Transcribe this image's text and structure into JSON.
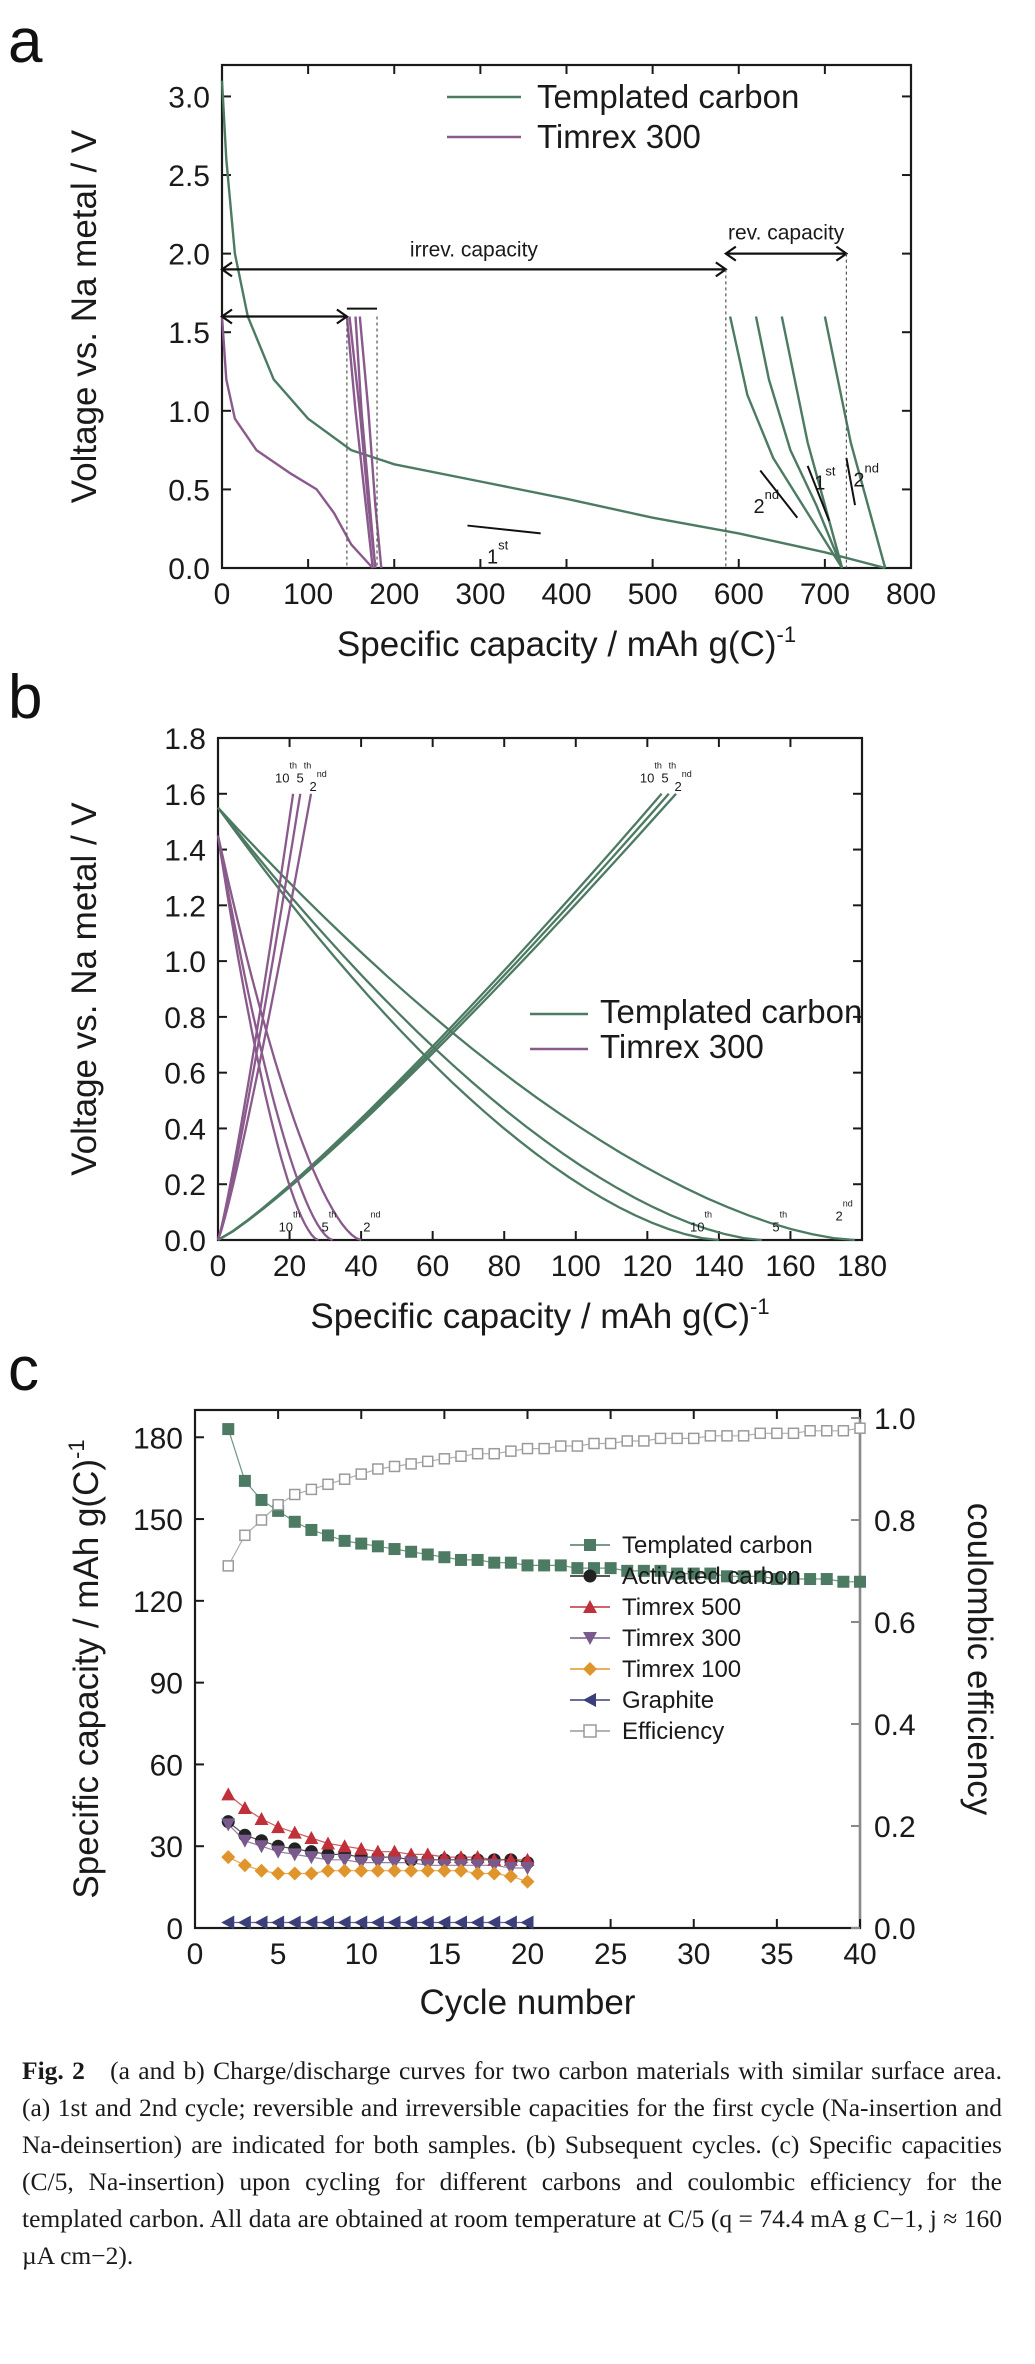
{
  "panels": {
    "a": {
      "letter": "a",
      "ylabel": "Voltage vs. Na metal / V",
      "xlabel": "Specific capacity / mAh g(C)",
      "xlabel_sup": "-1",
      "legend": [
        "Templated carbon",
        "Timrex 300"
      ],
      "annotations": {
        "irrev": "irrev. capacity",
        "rev": "rev. capacity",
        "first": "1",
        "first_sup": "st",
        "second": "2",
        "second_sup": "nd"
      }
    },
    "b": {
      "letter": "b",
      "ylabel": "Voltage vs. Na metal / V",
      "xlabel": "Specific capacity / mAh g(C)",
      "xlabel_sup": "-1",
      "legend": [
        "Templated carbon",
        "Timrex 300"
      ],
      "cycle_labels": {
        "tenth": "10",
        "tenth_sup": "th",
        "fifth": "5",
        "fifth_sup": "th",
        "second": "2",
        "second_sup": "nd"
      }
    },
    "c": {
      "letter": "c",
      "ylabel": "Specific capacity / mAh g(C)",
      "ylabel_sup": "-1",
      "y2label": "coulombic efficiency",
      "xlabel": "Cycle number",
      "legend": [
        "Templated carbon",
        "Activated carbon",
        "Timrex 500",
        "Timrex 300",
        "Timrex 100",
        "Graphite",
        "Efficiency"
      ]
    }
  },
  "colors": {
    "templated": "#4d7a62",
    "timrex300": "#8a5a8c",
    "activated": "#222222",
    "timrex500": "#c0303a",
    "timrex300c": "#7a5a8c",
    "timrex100": "#e0952c",
    "graphite": "#3a3f7a",
    "efficiency": "#9a9a9a",
    "axis": "#1a1a1a"
  },
  "caption": {
    "fig": "Fig. 2",
    "text": "(a and b) Charge/discharge curves for two carbon materials with similar surface area. (a) 1st and 2nd cycle; reversible and irreversible capacities for the first cycle (Na-insertion and Na-deinsertion) are indicated for both samples. (b) Subsequent cycles. (c) Specific capacities (C/5, Na-insertion) upon cycling for different carbons and coulombic efficiency for the templated carbon. All data are obtained at room temperature at C/5 (q = 74.4 mA g C−1, j ≈ 160 µA cm−2)."
  },
  "chart_data": [
    {
      "panel": "a",
      "type": "line",
      "xlabel": "Specific capacity / mAh g(C)-1",
      "ylabel": "Voltage vs. Na metal / V",
      "xlim": [
        0,
        800
      ],
      "ylim": [
        0,
        3.2
      ],
      "xticks": [
        0,
        100,
        200,
        300,
        400,
        500,
        600,
        700,
        800
      ],
      "yticks": [
        0.0,
        0.5,
        1.0,
        1.5,
        2.0,
        2.5,
        3.0
      ],
      "series": [
        {
          "name": "Templated carbon",
          "color": "#4d7a62",
          "curves": [
            [
              [
                0,
                3.1
              ],
              [
                5,
                2.6
              ],
              [
                15,
                2.0
              ],
              [
                30,
                1.6
              ],
              [
                60,
                1.2
              ],
              [
                100,
                0.95
              ],
              [
                150,
                0.75
              ],
              [
                200,
                0.66
              ],
              [
                300,
                0.55
              ],
              [
                400,
                0.44
              ],
              [
                500,
                0.32
              ],
              [
                600,
                0.22
              ],
              [
                700,
                0.1
              ],
              [
                770,
                0.0
              ]
            ],
            [
              [
                770,
                0.0
              ],
              [
                750,
                0.4
              ],
              [
                730,
                0.8
              ],
              [
                715,
                1.2
              ],
              [
                700,
                1.6
              ]
            ],
            [
              [
                590,
                1.6
              ],
              [
                610,
                1.1
              ],
              [
                640,
                0.7
              ],
              [
                680,
                0.35
              ],
              [
                720,
                0.0
              ]
            ],
            [
              [
                720,
                0.0
              ],
              [
                700,
                0.4
              ],
              [
                680,
                0.8
              ],
              [
                665,
                1.2
              ],
              [
                650,
                1.6
              ]
            ],
            [
              [
                620,
                1.6
              ],
              [
                635,
                1.2
              ],
              [
                660,
                0.75
              ],
              [
                690,
                0.4
              ],
              [
                720,
                0.0
              ]
            ]
          ]
        },
        {
          "name": "Timrex 300",
          "color": "#8a5a8c",
          "curves": [
            [
              [
                0,
                1.6
              ],
              [
                5,
                1.2
              ],
              [
                15,
                0.95
              ],
              [
                40,
                0.75
              ],
              [
                80,
                0.6
              ],
              [
                110,
                0.5
              ],
              [
                130,
                0.35
              ],
              [
                150,
                0.15
              ],
              [
                175,
                0.0
              ]
            ],
            [
              [
                175,
                0.0
              ],
              [
                165,
                0.5
              ],
              [
                155,
                1.0
              ],
              [
                145,
                1.6
              ]
            ],
            [
              [
                148,
                1.6
              ],
              [
                160,
                1.0
              ],
              [
                170,
                0.4
              ],
              [
                178,
                0.0
              ]
            ],
            [
              [
                178,
                0.0
              ],
              [
                170,
                0.5
              ],
              [
                162,
                1.0
              ],
              [
                155,
                1.6
              ]
            ],
            [
              [
                160,
                1.6
              ],
              [
                170,
                1.0
              ],
              [
                178,
                0.4
              ],
              [
                185,
                0.0
              ]
            ]
          ]
        }
      ],
      "annotations": [
        {
          "text": "irrev. capacity",
          "from": 0,
          "to": 585,
          "y": 1.9
        },
        {
          "text": "rev. capacity",
          "from": 585,
          "to": 725,
          "y": 1.9
        },
        {
          "text": "1st",
          "x": 330,
          "y": 0.25
        },
        {
          "text": "1st",
          "x": 690,
          "y": 0.8
        },
        {
          "text": "2nd",
          "x": 625,
          "y": 0.5
        },
        {
          "text": "2nd",
          "x": 745,
          "y": 0.9
        }
      ]
    },
    {
      "panel": "b",
      "type": "line",
      "xlabel": "Specific capacity / mAh g(C)-1",
      "ylabel": "Voltage vs. Na metal / V",
      "xlim": [
        0,
        180
      ],
      "ylim": [
        0,
        1.8
      ],
      "xticks": [
        0,
        20,
        40,
        60,
        80,
        100,
        120,
        140,
        160,
        180
      ],
      "yticks": [
        0.0,
        0.2,
        0.4,
        0.6,
        0.8,
        1.0,
        1.2,
        1.4,
        1.6,
        1.8
      ],
      "series": [
        {
          "name": "Templated carbon",
          "color": "#4d7a62",
          "discharge_end": [
            {
              "cycle": "2nd",
              "x": 178
            },
            {
              "cycle": "5th",
              "x": 152
            },
            {
              "cycle": "10th",
              "x": 140
            }
          ],
          "charge_end": [
            {
              "cycle": "2nd",
              "x": 128
            },
            {
              "cycle": "5th",
              "x": 126
            },
            {
              "cycle": "10th",
              "x": 124
            }
          ]
        },
        {
          "name": "Timrex 300",
          "color": "#8a5a8c",
          "discharge_end": [
            {
              "cycle": "2nd",
              "x": 40
            },
            {
              "cycle": "5th",
              "x": 32
            },
            {
              "cycle": "10th",
              "x": 28
            }
          ],
          "charge_end": [
            {
              "cycle": "2nd",
              "x": 26
            },
            {
              "cycle": "5th",
              "x": 23
            },
            {
              "cycle": "10th",
              "x": 21
            }
          ]
        }
      ]
    },
    {
      "panel": "c",
      "type": "scatter",
      "xlabel": "Cycle number",
      "ylabel": "Specific capacity / mAh g(C)-1",
      "y2label": "coulombic efficiency",
      "xlim": [
        0,
        40
      ],
      "ylim": [
        0,
        190
      ],
      "y2lim": [
        0,
        1.0
      ],
      "xticks": [
        0,
        5,
        10,
        15,
        20,
        25,
        30,
        35,
        40
      ],
      "yticks": [
        0,
        30,
        60,
        90,
        120,
        150,
        180
      ],
      "y2ticks": [
        0.0,
        0.2,
        0.4,
        0.6,
        0.8,
        1.0
      ],
      "series": [
        {
          "name": "Templated carbon",
          "marker": "square",
          "color": "#4d7a62",
          "x": [
            2,
            3,
            4,
            5,
            6,
            7,
            8,
            9,
            10,
            11,
            12,
            13,
            14,
            15,
            16,
            17,
            18,
            19,
            20,
            21,
            22,
            23,
            24,
            25,
            26,
            27,
            28,
            29,
            30,
            31,
            32,
            33,
            34,
            35,
            36,
            37,
            38,
            39,
            40
          ],
          "values": [
            183,
            164,
            157,
            153,
            149,
            146,
            144,
            142,
            141,
            140,
            139,
            138,
            137,
            136,
            135,
            135,
            134,
            134,
            133,
            133,
            133,
            132,
            132,
            132,
            131,
            131,
            131,
            130,
            130,
            130,
            129,
            129,
            129,
            128,
            128,
            128,
            128,
            127,
            127
          ]
        },
        {
          "name": "Activated carbon",
          "marker": "circle",
          "color": "#222222",
          "x": [
            2,
            3,
            4,
            5,
            6,
            7,
            8,
            9,
            10,
            11,
            12,
            13,
            14,
            15,
            16,
            17,
            18,
            19,
            20
          ],
          "values": [
            39,
            34,
            32,
            30,
            29,
            28,
            27,
            27,
            26,
            26,
            26,
            25,
            25,
            25,
            25,
            25,
            25,
            25,
            24
          ]
        },
        {
          "name": "Timrex 500",
          "marker": "triangle-up",
          "color": "#c0303a",
          "x": [
            2,
            3,
            4,
            5,
            6,
            7,
            8,
            9,
            10,
            11,
            12,
            13,
            14,
            15,
            16,
            17,
            18,
            19,
            20
          ],
          "values": [
            49,
            44,
            40,
            37,
            35,
            33,
            31,
            30,
            29,
            28,
            28,
            27,
            27,
            26,
            26,
            26,
            25,
            25,
            25
          ]
        },
        {
          "name": "Timrex 300",
          "marker": "triangle-down",
          "color": "#7a5a8c",
          "x": [
            2,
            3,
            4,
            5,
            6,
            7,
            8,
            9,
            10,
            11,
            12,
            13,
            14,
            15,
            16,
            17,
            18,
            19,
            20
          ],
          "values": [
            38,
            32,
            30,
            28,
            27,
            26,
            25,
            25,
            24,
            24,
            24,
            24,
            23,
            23,
            23,
            23,
            23,
            22,
            22
          ]
        },
        {
          "name": "Timrex 100",
          "marker": "diamond",
          "color": "#e0952c",
          "x": [
            2,
            3,
            4,
            5,
            6,
            7,
            8,
            9,
            10,
            11,
            12,
            13,
            14,
            15,
            16,
            17,
            18,
            19,
            20
          ],
          "values": [
            26,
            23,
            21,
            20,
            20,
            20,
            21,
            21,
            21,
            21,
            21,
            21,
            21,
            21,
            21,
            20,
            20,
            19,
            17
          ]
        },
        {
          "name": "Graphite",
          "marker": "triangle-left",
          "color": "#3a3f7a",
          "x": [
            2,
            3,
            4,
            5,
            6,
            7,
            8,
            9,
            10,
            11,
            12,
            13,
            14,
            15,
            16,
            17,
            18,
            19,
            20
          ],
          "values": [
            2,
            2,
            2,
            2,
            2,
            2,
            2,
            2,
            2,
            2,
            2,
            2,
            2,
            2,
            2,
            2,
            2,
            2,
            2
          ]
        },
        {
          "name": "Efficiency",
          "marker": "open-square",
          "color": "#9a9a9a",
          "axis": "right",
          "x": [
            2,
            3,
            4,
            5,
            6,
            7,
            8,
            9,
            10,
            11,
            12,
            13,
            14,
            15,
            16,
            17,
            18,
            19,
            20,
            21,
            22,
            23,
            24,
            25,
            26,
            27,
            28,
            29,
            30,
            31,
            32,
            33,
            34,
            35,
            36,
            37,
            38,
            39,
            40
          ],
          "values": [
            0.71,
            0.77,
            0.8,
            0.83,
            0.85,
            0.86,
            0.87,
            0.88,
            0.89,
            0.9,
            0.905,
            0.91,
            0.915,
            0.92,
            0.925,
            0.93,
            0.93,
            0.935,
            0.94,
            0.94,
            0.945,
            0.945,
            0.95,
            0.95,
            0.955,
            0.955,
            0.96,
            0.96,
            0.96,
            0.965,
            0.965,
            0.965,
            0.97,
            0.97,
            0.97,
            0.975,
            0.975,
            0.975,
            0.98
          ]
        }
      ]
    }
  ]
}
